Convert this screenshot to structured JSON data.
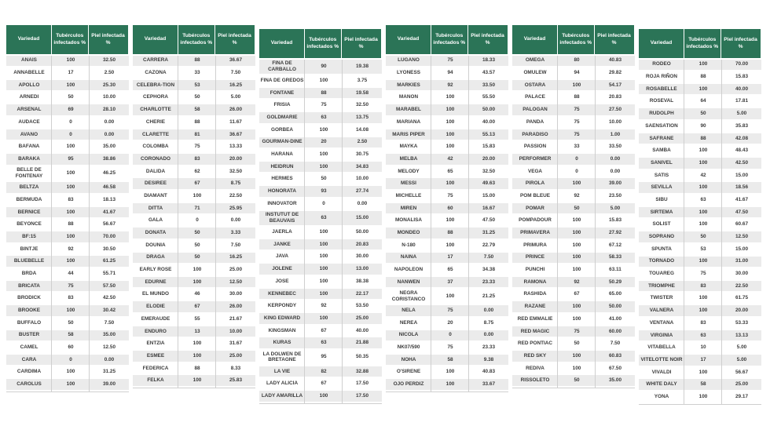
{
  "header": {
    "variety": "Variedad",
    "tubers": "Tubérculos infectados %",
    "skin": "Piel infectada %"
  },
  "colors": {
    "header_bg": "#2b7457",
    "row_alt": "#ebebeb",
    "divider": "#cfcfcf",
    "text": "#3b3b3b"
  },
  "tables": [
    {
      "rows": [
        {
          "v": "ANAIS",
          "t": "100",
          "p": "32.50"
        },
        {
          "v": "ANNABELLE",
          "t": "17",
          "p": "2.50"
        },
        {
          "v": "APOLLO",
          "t": "100",
          "p": "25.30"
        },
        {
          "v": "ARNEDI",
          "t": "50",
          "p": "10.00"
        },
        {
          "v": "ARSENAL",
          "t": "69",
          "p": "28.10"
        },
        {
          "v": "AUDACE",
          "t": "0",
          "p": "0.00"
        },
        {
          "v": "AVANO",
          "t": "0",
          "p": "0.00"
        },
        {
          "v": "BAFANA",
          "t": "100",
          "p": "35.00"
        },
        {
          "v": "BARAKA",
          "t": "95",
          "p": "38.86"
        },
        {
          "v": "BELLE DE FONTENAY",
          "t": "100",
          "p": "46.25"
        },
        {
          "v": "BELTZA",
          "t": "100",
          "p": "46.58"
        },
        {
          "v": "BERMUDA",
          "t": "83",
          "p": "18.13"
        },
        {
          "v": "BERNICE",
          "t": "100",
          "p": "41.67"
        },
        {
          "v": "BEYONCE",
          "t": "88",
          "p": "56.67"
        },
        {
          "v": "BF:15",
          "t": "100",
          "p": "70.00"
        },
        {
          "v": "BINTJE",
          "t": "92",
          "p": "30.50"
        },
        {
          "v": "BLUEBELLE",
          "t": "100",
          "p": "61.25"
        },
        {
          "v": "BRDA",
          "t": "44",
          "p": "55.71"
        },
        {
          "v": "BRICATA",
          "t": "75",
          "p": "57.50"
        },
        {
          "v": "BRODICK",
          "t": "83",
          "p": "42.50"
        },
        {
          "v": "BROOKE",
          "t": "100",
          "p": "30.42"
        },
        {
          "v": "BUFFALO",
          "t": "50",
          "p": "7.50"
        },
        {
          "v": "BUSTER",
          "t": "58",
          "p": "35.00"
        },
        {
          "v": "CAMEL",
          "t": "60",
          "p": "12.50"
        },
        {
          "v": "CARA",
          "t": "0",
          "p": "0.00"
        },
        {
          "v": "CARDIMA",
          "t": "100",
          "p": "31.25"
        },
        {
          "v": "CAROLUS",
          "t": "100",
          "p": "39.00"
        }
      ]
    },
    {
      "rows": [
        {
          "v": "CARRERA",
          "t": "88",
          "p": "36.67"
        },
        {
          "v": "CAZONA",
          "t": "33",
          "p": "7.50"
        },
        {
          "v": "CELEBRA-TION",
          "t": "53",
          "p": "16.25"
        },
        {
          "v": "CEPHORA",
          "t": "50",
          "p": "5.00"
        },
        {
          "v": "CHARLOTTE",
          "t": "58",
          "p": "26.00"
        },
        {
          "v": "CHERIE",
          "t": "88",
          "p": "11.67"
        },
        {
          "v": "CLARETTE",
          "t": "81",
          "p": "36.67"
        },
        {
          "v": "COLOMBA",
          "t": "75",
          "p": "13.33"
        },
        {
          "v": "CORONADO",
          "t": "83",
          "p": "20.00"
        },
        {
          "v": "DALIDA",
          "t": "62",
          "p": "32.50"
        },
        {
          "v": "DESIREE",
          "t": "67",
          "p": "8.75"
        },
        {
          "v": "DIAMANT",
          "t": "100",
          "p": "22.50"
        },
        {
          "v": "DITTA",
          "t": "71",
          "p": "25.95"
        },
        {
          "v": "GALA",
          "t": "0",
          "p": "0.00"
        },
        {
          "v": "DONATA",
          "t": "50",
          "p": "3.33"
        },
        {
          "v": "DOUNIA",
          "t": "50",
          "p": "7.50"
        },
        {
          "v": "DRAGA",
          "t": "50",
          "p": "16.25"
        },
        {
          "v": "EARLY ROSE",
          "t": "100",
          "p": "25.00"
        },
        {
          "v": "EDURNE",
          "t": "100",
          "p": "12.50"
        },
        {
          "v": "EL MUNDO",
          "t": "46",
          "p": "30.00"
        },
        {
          "v": "ELODIE",
          "t": "67",
          "p": "26.00"
        },
        {
          "v": "EMERAUDE",
          "t": "55",
          "p": "21.67"
        },
        {
          "v": "ENDURO",
          "t": "13",
          "p": "10.00"
        },
        {
          "v": "ENTZIA",
          "t": "100",
          "p": "31.67"
        },
        {
          "v": "ESMEE",
          "t": "100",
          "p": "25.00"
        },
        {
          "v": "FEDERICA",
          "t": "88",
          "p": "8.33"
        },
        {
          "v": "FELKA",
          "t": "100",
          "p": "25.83"
        }
      ]
    },
    {
      "rows": [
        {
          "v": "FINA DE CARBALLO",
          "t": "90",
          "p": "19.38"
        },
        {
          "v": "FINA DE GREDOS",
          "t": "100",
          "p": "3.75"
        },
        {
          "v": "FONTANE",
          "t": "88",
          "p": "19.58"
        },
        {
          "v": "FRISIA",
          "t": "75",
          "p": "32.50"
        },
        {
          "v": "GOLDMARIE",
          "t": "63",
          "p": "13.75"
        },
        {
          "v": "GORBEA",
          "t": "100",
          "p": "14.08"
        },
        {
          "v": "GOURMAN-DINE",
          "t": "20",
          "p": "2.50"
        },
        {
          "v": "HARANA",
          "t": "100",
          "p": "30.75"
        },
        {
          "v": "HEIDRUN",
          "t": "100",
          "p": "34.83"
        },
        {
          "v": "HERMES",
          "t": "50",
          "p": "10.00"
        },
        {
          "v": "HONORATA",
          "t": "93",
          "p": "27.74"
        },
        {
          "v": "INNOVATOR",
          "t": "0",
          "p": "0.00"
        },
        {
          "v": "INSTUTUT DE BEAUVAIS",
          "t": "63",
          "p": "15.00"
        },
        {
          "v": "JAERLA",
          "t": "100",
          "p": "50.00"
        },
        {
          "v": "JANKE",
          "t": "100",
          "p": "20.83"
        },
        {
          "v": "JAVA",
          "t": "100",
          "p": "30.00"
        },
        {
          "v": "JOLENE",
          "t": "100",
          "p": "13.00"
        },
        {
          "v": "JOSE",
          "t": "100",
          "p": "38.38"
        },
        {
          "v": "KENNEBEC",
          "t": "100",
          "p": "22.17"
        },
        {
          "v": "KERPONDY",
          "t": "92",
          "p": "53.50"
        },
        {
          "v": "KING EDWARD",
          "t": "100",
          "p": "25.00"
        },
        {
          "v": "KINGSMAN",
          "t": "67",
          "p": "40.00"
        },
        {
          "v": "KURAS",
          "t": "63",
          "p": "21.88"
        },
        {
          "v": "LA DOLWEN DE BRETAGNE",
          "t": "95",
          "p": "50.35"
        },
        {
          "v": "LA VIE",
          "t": "82",
          "p": "32.88"
        },
        {
          "v": "LADY ALICIA",
          "t": "67",
          "p": "17.50"
        },
        {
          "v": "LADY AMARILLA",
          "t": "100",
          "p": "17.50"
        }
      ]
    },
    {
      "rows": [
        {
          "v": "LUGANO",
          "t": "75",
          "p": "18.33"
        },
        {
          "v": "LYONESS",
          "t": "94",
          "p": "43.57"
        },
        {
          "v": "MARKIES",
          "t": "92",
          "p": "33.50"
        },
        {
          "v": "MANON",
          "t": "100",
          "p": "55.50"
        },
        {
          "v": "MARABEL",
          "t": "100",
          "p": "50.00"
        },
        {
          "v": "MARIANA",
          "t": "100",
          "p": "40.00"
        },
        {
          "v": "MARIS PIPER",
          "t": "100",
          "p": "55.13"
        },
        {
          "v": "MAYKA",
          "t": "100",
          "p": "15.83"
        },
        {
          "v": "MELBA",
          "t": "42",
          "p": "20.00"
        },
        {
          "v": "MELODY",
          "t": "65",
          "p": "32.50"
        },
        {
          "v": "MESSI",
          "t": "100",
          "p": "49.63"
        },
        {
          "v": "MICHELLE",
          "t": "75",
          "p": "15.00"
        },
        {
          "v": "MIREN",
          "t": "60",
          "p": "16.67"
        },
        {
          "v": "MONALISA",
          "t": "100",
          "p": "47.50"
        },
        {
          "v": "MONDEO",
          "t": "88",
          "p": "31.25"
        },
        {
          "v": "N-180",
          "t": "100",
          "p": "22.79"
        },
        {
          "v": "NAINA",
          "t": "17",
          "p": "7.50"
        },
        {
          "v": "NAPOLEON",
          "t": "65",
          "p": "34.38"
        },
        {
          "v": "NANWEN",
          "t": "37",
          "p": "23.33"
        },
        {
          "v": "NEGRA CORISTANCO",
          "t": "100",
          "p": "21.25"
        },
        {
          "v": "NELA",
          "t": "75",
          "p": "0.00"
        },
        {
          "v": "NEREA",
          "t": "20",
          "p": "8.75"
        },
        {
          "v": "NICOLA",
          "t": "0",
          "p": "0.00"
        },
        {
          "v": "NK07/590",
          "t": "75",
          "p": "23.33"
        },
        {
          "v": "NOHA",
          "t": "58",
          "p": "9.38"
        },
        {
          "v": "O'SIRENE",
          "t": "100",
          "p": "40.83"
        },
        {
          "v": "OJO PERDIZ",
          "t": "100",
          "p": "33.67"
        }
      ]
    },
    {
      "rows": [
        {
          "v": "OMEGA",
          "t": "80",
          "p": "40.83"
        },
        {
          "v": "OMULEW",
          "t": "94",
          "p": "29.82"
        },
        {
          "v": "OSTARA",
          "t": "100",
          "p": "54.17"
        },
        {
          "v": "PALACE",
          "t": "88",
          "p": "20.83"
        },
        {
          "v": "PALOGAN",
          "t": "75",
          "p": "27.50"
        },
        {
          "v": "PANDA",
          "t": "75",
          "p": "10.00"
        },
        {
          "v": "PARADISO",
          "t": "75",
          "p": "1.00"
        },
        {
          "v": "PASSION",
          "t": "33",
          "p": "33.50"
        },
        {
          "v": "PERFORMER",
          "t": "0",
          "p": "0.00"
        },
        {
          "v": "VEGA",
          "t": "0",
          "p": "0.00"
        },
        {
          "v": "PIROLA",
          "t": "100",
          "p": "39.00"
        },
        {
          "v": "POM BLEUE",
          "t": "92",
          "p": "23.50"
        },
        {
          "v": "POMAR",
          "t": "50",
          "p": "5.00"
        },
        {
          "v": "POMPADOUR",
          "t": "100",
          "p": "15.83"
        },
        {
          "v": "PRIMAVERA",
          "t": "100",
          "p": "27.92"
        },
        {
          "v": "PRIMURA",
          "t": "100",
          "p": "67.12"
        },
        {
          "v": "PRINCE",
          "t": "100",
          "p": "58.33"
        },
        {
          "v": "PUNCHI",
          "t": "100",
          "p": "63.11"
        },
        {
          "v": "RAMONA",
          "t": "92",
          "p": "50.29"
        },
        {
          "v": "RASHIDA",
          "t": "67",
          "p": "65.00"
        },
        {
          "v": "RAZANE",
          "t": "100",
          "p": "50.00"
        },
        {
          "v": "RED EMMALIE",
          "t": "100",
          "p": "41.00"
        },
        {
          "v": "RED MAGIC",
          "t": "75",
          "p": "60.00"
        },
        {
          "v": "RED PONTIAC",
          "t": "50",
          "p": "7.50"
        },
        {
          "v": "RED SKY",
          "t": "100",
          "p": "60.83"
        },
        {
          "v": "REDIVA",
          "t": "100",
          "p": "67.50"
        },
        {
          "v": "RISSOLETO",
          "t": "50",
          "p": "35.00"
        }
      ]
    },
    {
      "rows": [
        {
          "v": "RODEO",
          "t": "100",
          "p": "70.00"
        },
        {
          "v": "ROJA RIÑON",
          "t": "88",
          "p": "15.83"
        },
        {
          "v": "ROSABELLE",
          "t": "100",
          "p": "40.00"
        },
        {
          "v": "ROSEVAL",
          "t": "64",
          "p": "17.81"
        },
        {
          "v": "RUDOLPH",
          "t": "50",
          "p": "5.00"
        },
        {
          "v": "SAENSATION",
          "t": "90",
          "p": "35.83"
        },
        {
          "v": "SAFRANE",
          "t": "88",
          "p": "42.08"
        },
        {
          "v": "SAMBA",
          "t": "100",
          "p": "48.43"
        },
        {
          "v": "SANIVEL",
          "t": "100",
          "p": "42.50"
        },
        {
          "v": "SATIS",
          "t": "42",
          "p": "15.00"
        },
        {
          "v": "SEVILLA",
          "t": "100",
          "p": "18.56"
        },
        {
          "v": "SIBU",
          "t": "63",
          "p": "41.67"
        },
        {
          "v": "SIRTEMA",
          "t": "100",
          "p": "47.50"
        },
        {
          "v": "SOLIST",
          "t": "100",
          "p": "60.67"
        },
        {
          "v": "SOPRANO",
          "t": "50",
          "p": "12.50"
        },
        {
          "v": "SPUNTA",
          "t": "53",
          "p": "15.00"
        },
        {
          "v": "TORNADO",
          "t": "100",
          "p": "31.00"
        },
        {
          "v": "TOUAREG",
          "t": "75",
          "p": "30.00"
        },
        {
          "v": "TRIOMPHE",
          "t": "83",
          "p": "22.50"
        },
        {
          "v": "TWISTER",
          "t": "100",
          "p": "61.75"
        },
        {
          "v": "VALNERA",
          "t": "100",
          "p": "20.00"
        },
        {
          "v": "VENTANA",
          "t": "83",
          "p": "53.33"
        },
        {
          "v": "VIRGINIA",
          "t": "63",
          "p": "13.13"
        },
        {
          "v": "VITABELLA",
          "t": "10",
          "p": "5.00"
        },
        {
          "v": "VITELOTTE NOIR",
          "t": "17",
          "p": "5.00"
        },
        {
          "v": "VIVALDI",
          "t": "100",
          "p": "56.67"
        },
        {
          "v": "WHITE DALY",
          "t": "58",
          "p": "25.00"
        },
        {
          "v": "YONA",
          "t": "100",
          "p": "29.17"
        }
      ]
    }
  ]
}
